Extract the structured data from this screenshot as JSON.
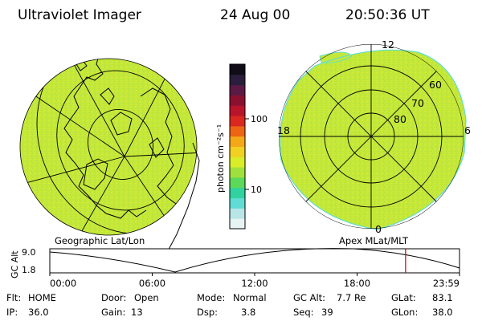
{
  "header": {
    "title": "Ultraviolet Imager",
    "date": "24 Aug 00",
    "time": "20:50:36 UT"
  },
  "colors": {
    "disk_fill": "#c4e83a",
    "disk_noise": "#dcec30",
    "rim_cyan": "#5fe0d0",
    "line": "#000000",
    "marker": "#cc0000"
  },
  "colorbar": {
    "unit_label": "photon cm⁻²s⁻¹",
    "tick_100": "100",
    "tick_10": "10",
    "stops": [
      "#e8f4f4",
      "#b8e6e6",
      "#60dcd4",
      "#32d2a0",
      "#5cd85a",
      "#a0e03c",
      "#d8ec28",
      "#f0d020",
      "#f4a818",
      "#ec6414",
      "#d82820",
      "#b8142c",
      "#8a1030",
      "#5a1a44",
      "#2a1e3c",
      "#100c18"
    ]
  },
  "right_disk": {
    "lat_labels": [
      "80",
      "70",
      "60"
    ],
    "mlt_labels": [
      "12",
      "6",
      "0",
      "18"
    ]
  },
  "panels": {
    "left_label": "Geographic Lat/Lon",
    "right_label": "Apex MLat/MLT"
  },
  "timeline": {
    "axis_label": "GC Alt",
    "y_top": "9.0",
    "y_bottom": "1.8",
    "ticks": [
      "00:00",
      "06:00",
      "12:00",
      "18:00",
      "23:59"
    ],
    "marker_time_hours": 20.84
  },
  "info": {
    "flt_label": "Flt:",
    "flt_value": "HOME",
    "ip_label": "IP:",
    "ip_value": "36.0",
    "door_label": "Door:",
    "door_value": "Open",
    "gain_label": "Gain:",
    "gain_value": "13",
    "mode_label": "Mode:",
    "mode_value": "Normal",
    "dsp_label": "Dsp:",
    "dsp_value": "3.8",
    "gcalt_label": "GC Alt:",
    "gcalt_value": "7.7 Re",
    "seq_label": "Seq:",
    "seq_value": "39",
    "glat_label": "GLat:",
    "glat_value": "83.1",
    "glon_label": "GLon:",
    "glon_value": "38.0"
  }
}
